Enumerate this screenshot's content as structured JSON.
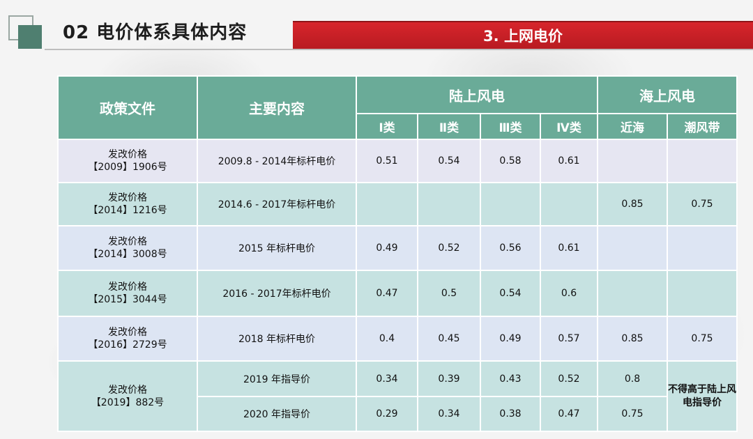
{
  "header": {
    "title": "02 电价体系具体内容",
    "section": "3. 上网电价"
  },
  "table": {
    "col_policy": "政策文件",
    "col_content": "主要内容",
    "group_onshore": "陆上风电",
    "group_offshore": "海上风电",
    "sub_cols": [
      "Ⅰ类",
      "Ⅱ类",
      "Ⅲ类",
      "Ⅳ类",
      "近海",
      "潮风带"
    ],
    "rows": [
      {
        "doc_line1": "发改价格",
        "doc_line2": "【2009】1906号",
        "content": "2009.8 - 2014年标杆电价",
        "v": [
          "0.51",
          "0.54",
          "0.58",
          "0.61",
          "",
          ""
        ]
      },
      {
        "doc_line1": "发改价格",
        "doc_line2": "【2014】1216号",
        "content": "2014.6 - 2017年标杆电价",
        "v": [
          "",
          "",
          "",
          "",
          "0.85",
          "0.75"
        ]
      },
      {
        "doc_line1": "发改价格",
        "doc_line2": "【2014】3008号",
        "content": "2015 年标杆电价",
        "v": [
          "0.49",
          "0.52",
          "0.56",
          "0.61",
          "",
          ""
        ]
      },
      {
        "doc_line1": "发改价格",
        "doc_line2": "【2015】3044号",
        "content": "2016 - 2017年标杆电价",
        "v": [
          "0.47",
          "0.5",
          "0.54",
          "0.6",
          "",
          ""
        ]
      },
      {
        "doc_line1": "发改价格",
        "doc_line2": "【2016】2729号",
        "content": "2018 年标杆电价",
        "v": [
          "0.4",
          "0.45",
          "0.49",
          "0.57",
          "0.85",
          "0.75"
        ]
      }
    ],
    "last_group": {
      "doc_line1": "发改价格",
      "doc_line2": "【2019】882号",
      "note": "不得高于陆上风电指导价",
      "rows": [
        {
          "content": "2019 年指导价",
          "v": [
            "0.34",
            "0.39",
            "0.43",
            "0.52",
            "0.8"
          ]
        },
        {
          "content": "2020 年指导价",
          "v": [
            "0.29",
            "0.34",
            "0.38",
            "0.47",
            "0.75"
          ]
        }
      ]
    }
  }
}
